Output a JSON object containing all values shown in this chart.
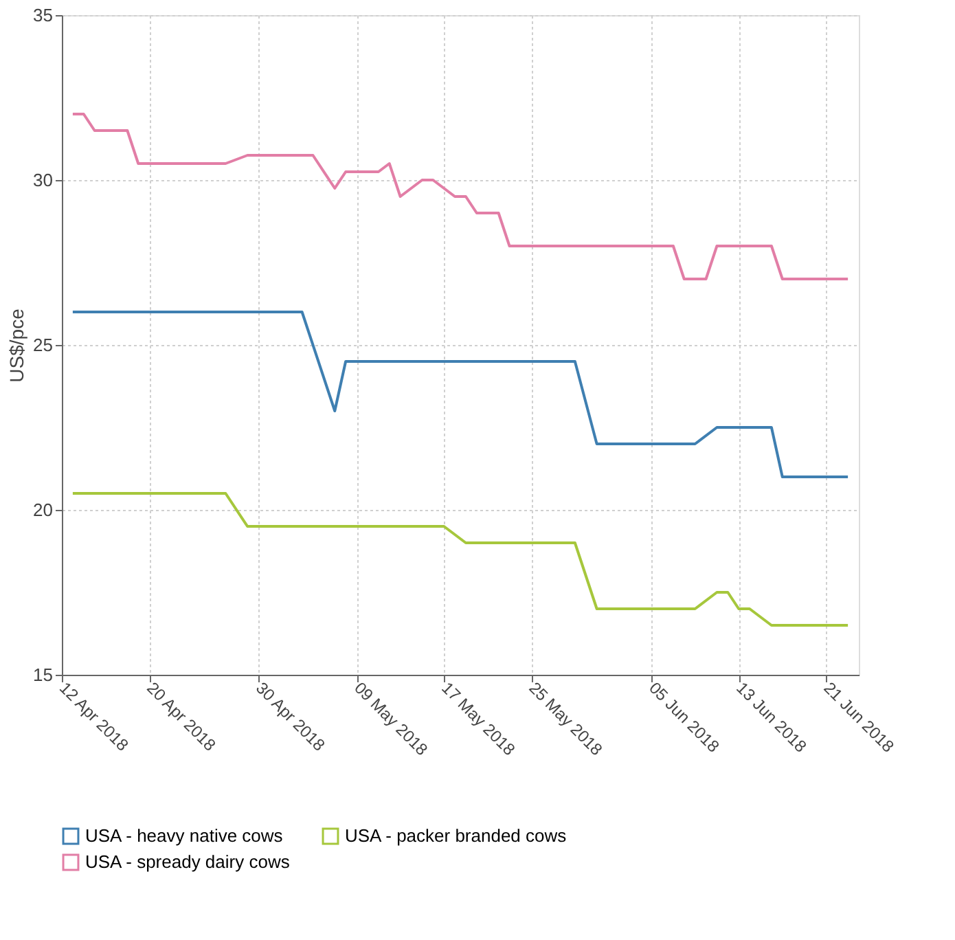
{
  "chart_data": {
    "type": "line",
    "ylabel": "US$/pce",
    "xlim": [
      "2018-04-12",
      "2018-06-24"
    ],
    "ylim": [
      15,
      35
    ],
    "yticks": [
      15,
      20,
      25,
      30,
      35
    ],
    "xticks": [
      {
        "value": "2018-04-12",
        "label": "12 Apr 2018"
      },
      {
        "value": "2018-04-20",
        "label": "20 Apr 2018"
      },
      {
        "value": "2018-04-30",
        "label": "30 Apr 2018"
      },
      {
        "value": "2018-05-09",
        "label": "09 May 2018"
      },
      {
        "value": "2018-05-17",
        "label": "17 May 2018"
      },
      {
        "value": "2018-05-25",
        "label": "25 May 2018"
      },
      {
        "value": "2018-06-05",
        "label": "05 Jun 2018"
      },
      {
        "value": "2018-06-13",
        "label": "13 Jun 2018"
      },
      {
        "value": "2018-06-21",
        "label": "21 Jun 2018"
      }
    ],
    "grid": true,
    "legend": "bottom",
    "line_style": "solid",
    "marker": "none",
    "series": [
      {
        "name": "USA - heavy native cows",
        "color": "#3f7fb1",
        "x": [
          "2018-04-13",
          "2018-05-04",
          "2018-05-07",
          "2018-05-08",
          "2018-05-29",
          "2018-05-31",
          "2018-06-09",
          "2018-06-11",
          "2018-06-16",
          "2018-06-17",
          "2018-06-23"
        ],
        "values": [
          26,
          26,
          23,
          24.5,
          24.5,
          22,
          22,
          22.5,
          22.5,
          21,
          21
        ]
      },
      {
        "name": "USA - packer branded cows",
        "color": "#a6c73c",
        "x": [
          "2018-04-13",
          "2018-04-27",
          "2018-04-29",
          "2018-05-17",
          "2018-05-19",
          "2018-05-29",
          "2018-05-31",
          "2018-06-09",
          "2018-06-11",
          "2018-06-12",
          "2018-06-13",
          "2018-06-14",
          "2018-06-16",
          "2018-06-23"
        ],
        "values": [
          20.5,
          20.5,
          19.5,
          19.5,
          19,
          19,
          17,
          17,
          17.5,
          17.5,
          17,
          17,
          16.5,
          16.5
        ]
      },
      {
        "name": "USA - spready dairy cows",
        "color": "#e27ea6",
        "x": [
          "2018-04-13",
          "2018-04-14",
          "2018-04-15",
          "2018-04-18",
          "2018-04-19",
          "2018-04-27",
          "2018-04-29",
          "2018-05-05",
          "2018-05-07",
          "2018-05-08",
          "2018-05-11",
          "2018-05-12",
          "2018-05-13",
          "2018-05-15",
          "2018-05-16",
          "2018-05-18",
          "2018-05-19",
          "2018-05-20",
          "2018-05-22",
          "2018-05-23",
          "2018-06-07",
          "2018-06-08",
          "2018-06-10",
          "2018-06-11",
          "2018-06-16",
          "2018-06-17",
          "2018-06-23"
        ],
        "values": [
          32,
          32,
          31.5,
          31.5,
          30.5,
          30.5,
          30.75,
          30.75,
          29.75,
          30.25,
          30.25,
          30.5,
          29.5,
          30,
          30,
          29.5,
          29.5,
          29,
          29,
          28,
          28,
          27,
          27,
          28,
          28,
          27,
          27
        ]
      }
    ]
  }
}
